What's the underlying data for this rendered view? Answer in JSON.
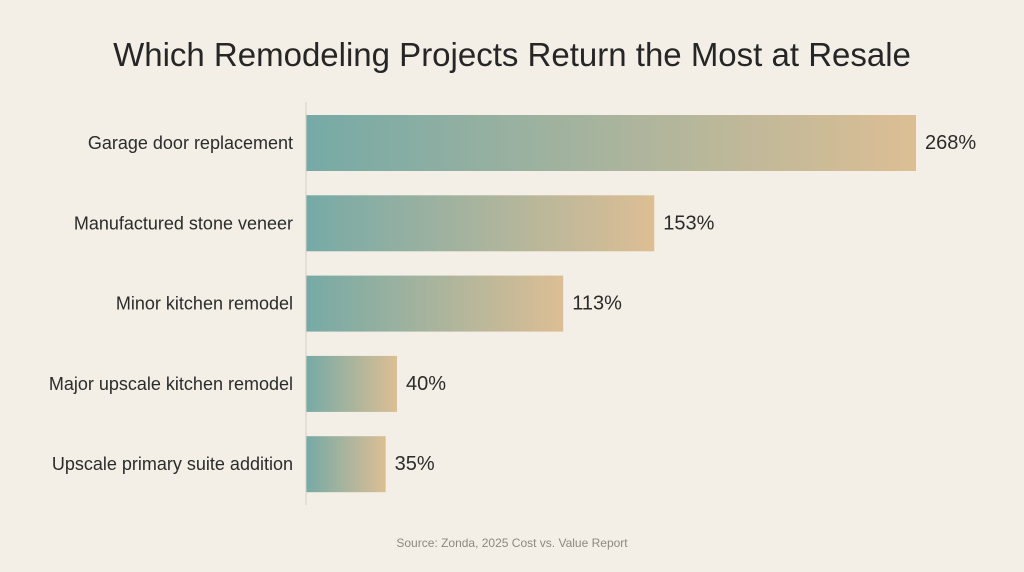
{
  "chart_data": {
    "type": "bar",
    "orientation": "horizontal",
    "title": "Which Remodeling Projects Return the Most at Resale",
    "source": "Source: Zonda, 2025 Cost vs. Value Report",
    "categories": [
      "Garage door replacement",
      "Manufactured stone veneer",
      "Minor kitchen remodel",
      "Major upscale kitchen remodel",
      "Upscale primary suite addition"
    ],
    "values": [
      268,
      153,
      113,
      40,
      35
    ],
    "value_labels": [
      "268%",
      "153%",
      "113%",
      "40%",
      "35%"
    ],
    "xlim": [
      0,
      268
    ],
    "grid": false,
    "legend": "none",
    "colors": {
      "bar_gradient_start": "#76aaa6",
      "bar_gradient_end": "#dcbe94",
      "background": "#f4efe6",
      "axis_line": "#d3cfc7"
    }
  }
}
